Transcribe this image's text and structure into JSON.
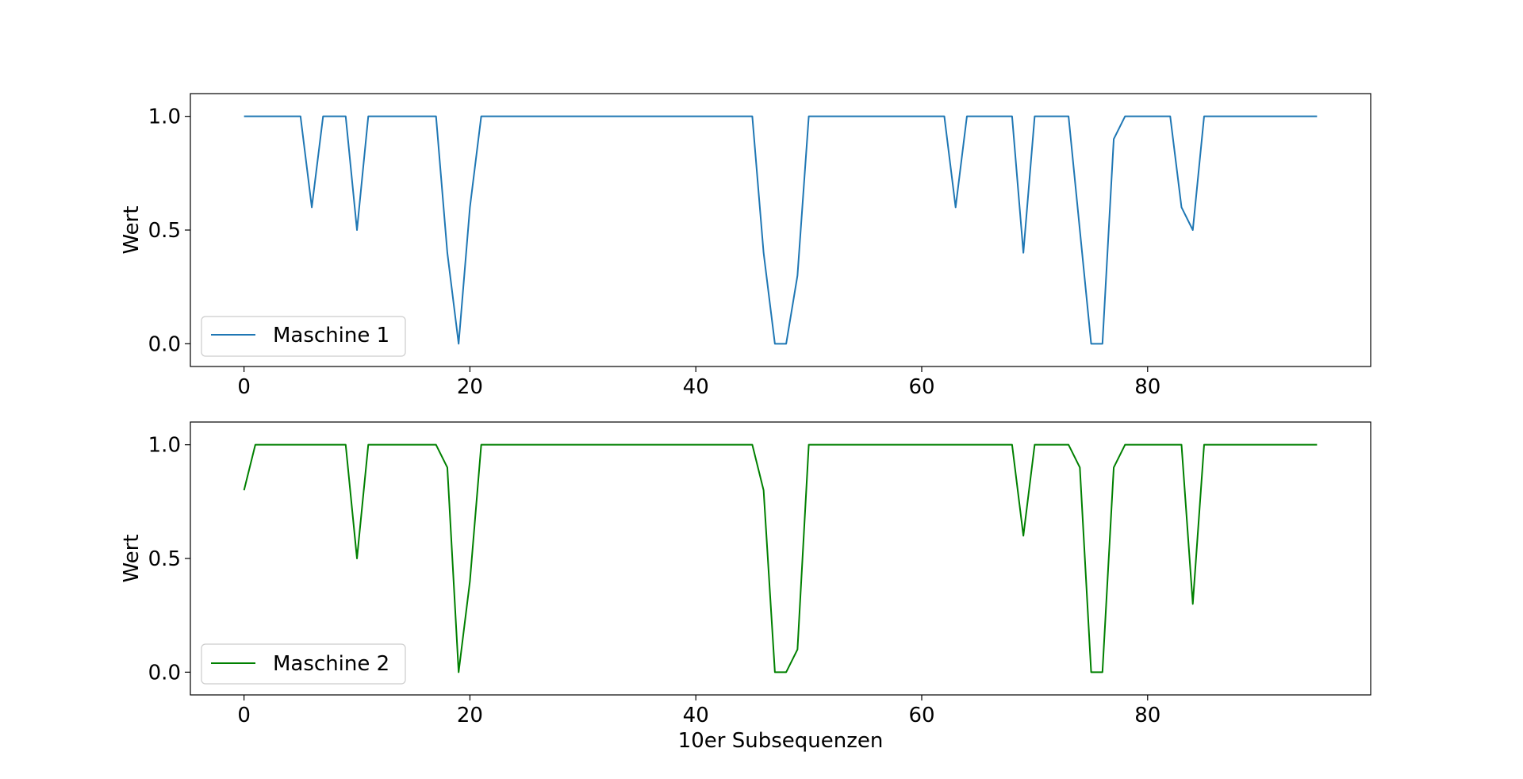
{
  "chart_data": [
    {
      "type": "line",
      "xlabel": "",
      "ylabel": "Wert",
      "xlim": [
        -4.75,
        99.75
      ],
      "ylim": [
        -0.1,
        1.1
      ],
      "xticks": [
        0,
        20,
        40,
        60,
        80
      ],
      "xtick_labels": [
        "0",
        "20",
        "40",
        "60",
        "80"
      ],
      "yticks": [
        0.0,
        0.5,
        1.0
      ],
      "ytick_labels": [
        "0.0",
        "0.5",
        "1.0"
      ],
      "legend_position": "lower-left",
      "series": [
        {
          "name": "Maschine 1",
          "color": "#1f77b4",
          "x": [
            0,
            1,
            2,
            3,
            4,
            5,
            6,
            7,
            8,
            9,
            10,
            11,
            12,
            13,
            14,
            15,
            16,
            17,
            18,
            19,
            20,
            21,
            22,
            23,
            24,
            25,
            26,
            27,
            28,
            29,
            30,
            31,
            32,
            33,
            34,
            35,
            36,
            37,
            38,
            39,
            40,
            41,
            42,
            43,
            44,
            45,
            46,
            47,
            48,
            49,
            50,
            51,
            52,
            53,
            54,
            55,
            56,
            57,
            58,
            59,
            60,
            61,
            62,
            63,
            64,
            65,
            66,
            67,
            68,
            69,
            70,
            71,
            72,
            73,
            74,
            75,
            76,
            77,
            78,
            79,
            80,
            81,
            82,
            83,
            84,
            85,
            86,
            87,
            88,
            89,
            90,
            91,
            92,
            93,
            94,
            95
          ],
          "values": [
            1,
            1,
            1,
            1,
            1,
            1,
            0.6,
            1,
            1,
            1,
            0.5,
            1,
            1,
            1,
            1,
            1,
            1,
            1,
            0.4,
            0,
            0.6,
            1,
            1,
            1,
            1,
            1,
            1,
            1,
            1,
            1,
            1,
            1,
            1,
            1,
            1,
            1,
            1,
            1,
            1,
            1,
            1,
            1,
            1,
            1,
            1,
            1,
            0.4,
            0,
            0,
            0.3,
            1,
            1,
            1,
            1,
            1,
            1,
            1,
            1,
            1,
            1,
            1,
            1,
            1,
            0.6,
            1,
            1,
            1,
            1,
            1,
            0.4,
            1,
            1,
            1,
            1,
            0.5,
            0,
            0,
            0.9,
            1,
            1,
            1,
            1,
            1,
            0.6,
            0.5,
            1,
            1,
            1,
            1,
            1,
            1,
            1,
            1,
            1,
            1,
            1
          ]
        }
      ]
    },
    {
      "type": "line",
      "xlabel": "10er Subsequenzen",
      "ylabel": "Wert",
      "xlim": [
        -4.75,
        99.75
      ],
      "ylim": [
        -0.1,
        1.1
      ],
      "xticks": [
        0,
        20,
        40,
        60,
        80
      ],
      "xtick_labels": [
        "0",
        "20",
        "40",
        "60",
        "80"
      ],
      "yticks": [
        0.0,
        0.5,
        1.0
      ],
      "ytick_labels": [
        "0.0",
        "0.5",
        "1.0"
      ],
      "legend_position": "lower-left",
      "series": [
        {
          "name": "Maschine 2",
          "color": "#008000",
          "x": [
            0,
            1,
            2,
            3,
            4,
            5,
            6,
            7,
            8,
            9,
            10,
            11,
            12,
            13,
            14,
            15,
            16,
            17,
            18,
            19,
            20,
            21,
            22,
            23,
            24,
            25,
            26,
            27,
            28,
            29,
            30,
            31,
            32,
            33,
            34,
            35,
            36,
            37,
            38,
            39,
            40,
            41,
            42,
            43,
            44,
            45,
            46,
            47,
            48,
            49,
            50,
            51,
            52,
            53,
            54,
            55,
            56,
            57,
            58,
            59,
            60,
            61,
            62,
            63,
            64,
            65,
            66,
            67,
            68,
            69,
            70,
            71,
            72,
            73,
            74,
            75,
            76,
            77,
            78,
            79,
            80,
            81,
            82,
            83,
            84,
            85,
            86,
            87,
            88,
            89,
            90,
            91,
            92,
            93,
            94,
            95
          ],
          "values": [
            0.8,
            1,
            1,
            1,
            1,
            1,
            1,
            1,
            1,
            1,
            0.5,
            1,
            1,
            1,
            1,
            1,
            1,
            1,
            0.9,
            0,
            0.4,
            1,
            1,
            1,
            1,
            1,
            1,
            1,
            1,
            1,
            1,
            1,
            1,
            1,
            1,
            1,
            1,
            1,
            1,
            1,
            1,
            1,
            1,
            1,
            1,
            1,
            0.8,
            0,
            0,
            0.1,
            1,
            1,
            1,
            1,
            1,
            1,
            1,
            1,
            1,
            1,
            1,
            1,
            1,
            1,
            1,
            1,
            1,
            1,
            1,
            0.6,
            1,
            1,
            1,
            1,
            0.9,
            0,
            0,
            0.9,
            1,
            1,
            1,
            1,
            1,
            1,
            0.3,
            1,
            1,
            1,
            1,
            1,
            1,
            1,
            1,
            1,
            1,
            1
          ]
        }
      ]
    }
  ]
}
